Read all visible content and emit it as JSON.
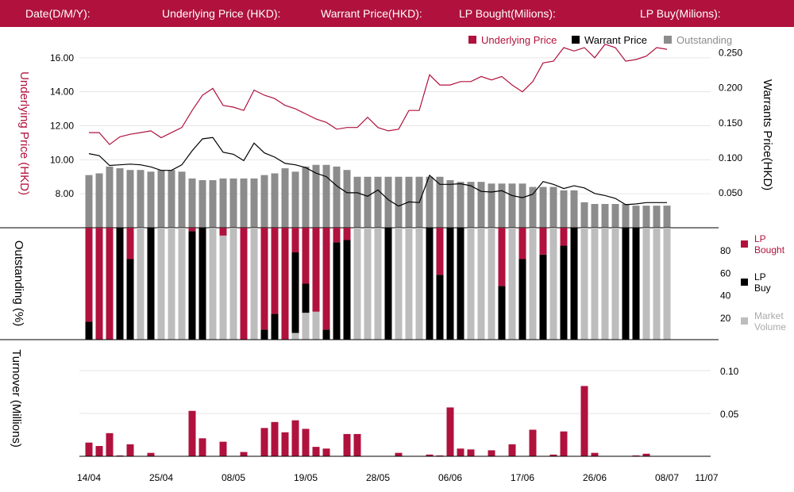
{
  "header": {
    "date_label": "Date(D/M/Y):",
    "underlying_label": "Underlying Price (HKD):",
    "warrant_label": "Warrant  Price(HKD):",
    "lp_bought_label": "LP Bought(Milions):",
    "lp_buy_label": "LP Buy(Milions):"
  },
  "colors": {
    "header_bg": "#b0123d",
    "crimson": "#b0123d",
    "black": "#000000",
    "outstanding": "#8c8c8c",
    "market": "#bdbdbd"
  },
  "chart_data": [
    {
      "type": "line",
      "legend": [
        "Underlying Price",
        "Warrant  Price",
        "Outstanding"
      ],
      "legend_position": "top-right",
      "ylabel_left": "Underlying Price (HKD)",
      "ylabel_right": "Warrants  Price(HKD)",
      "y_left_ticks": [
        "8.00",
        "10.00",
        "12.00",
        "14.00",
        "16.00"
      ],
      "y_right_ticks": [
        "0.050",
        "0.100",
        "0.150",
        "0.200",
        "0.250"
      ],
      "ylim_left": [
        6.0,
        16.6
      ],
      "ylim_right": [
        0.0,
        0.2575
      ],
      "underlying": [
        11.6,
        11.6,
        10.9,
        11.35,
        11.5,
        11.6,
        11.7,
        11.3,
        11.6,
        11.9,
        12.9,
        13.8,
        14.2,
        13.2,
        13.1,
        12.9,
        14.1,
        13.8,
        13.6,
        13.2,
        13.0,
        12.7,
        12.4,
        12.2,
        11.8,
        11.9,
        11.9,
        12.5,
        11.9,
        11.7,
        11.8,
        12.9,
        12.9,
        15.0,
        14.4,
        14.4,
        14.6,
        14.6,
        14.9,
        14.7,
        14.9,
        14.4,
        14.0,
        14.6,
        15.7,
        15.8,
        16.6,
        16.4,
        16.6,
        16.0,
        16.8,
        16.6,
        15.8,
        15.9,
        16.1,
        16.6,
        16.5
      ],
      "warrant": [
        0.106,
        0.103,
        0.089,
        0.09,
        0.091,
        0.09,
        0.087,
        0.082,
        0.082,
        0.09,
        0.11,
        0.127,
        0.129,
        0.108,
        0.105,
        0.096,
        0.121,
        0.107,
        0.101,
        0.092,
        0.09,
        0.086,
        0.078,
        0.073,
        0.06,
        0.05,
        0.05,
        0.045,
        0.054,
        0.04,
        0.031,
        0.037,
        0.036,
        0.075,
        0.062,
        0.062,
        0.063,
        0.06,
        0.052,
        0.051,
        0.053,
        0.046,
        0.043,
        0.048,
        0.066,
        0.062,
        0.056,
        0.06,
        0.057,
        0.049,
        0.046,
        0.042,
        0.033,
        0.034,
        0.036,
        0.036,
        0.036
      ],
      "outstanding": [
        9.1,
        9.2,
        9.6,
        9.5,
        9.4,
        9.4,
        9.3,
        9.4,
        9.4,
        9.3,
        8.9,
        8.8,
        8.8,
        8.9,
        8.9,
        8.9,
        8.9,
        9.1,
        9.2,
        9.5,
        9.3,
        9.6,
        9.7,
        9.7,
        9.6,
        9.4,
        9.0,
        9.0,
        9.0,
        9.0,
        9.0,
        9.0,
        9.0,
        9.0,
        9.0,
        8.8,
        8.7,
        8.7,
        8.7,
        8.6,
        8.6,
        8.6,
        8.6,
        8.4,
        8.4,
        8.4,
        8.2,
        8.2,
        7.5,
        7.4,
        7.4,
        7.4,
        7.4,
        7.3,
        7.3,
        7.3,
        7.3
      ]
    },
    {
      "type": "bar",
      "ylabel": "Outstanding (%)",
      "legend": [
        "LP Bought",
        "LP Buy",
        "Market Volume"
      ],
      "legend_position": "right",
      "y_ticks": [
        20,
        40,
        60,
        80
      ],
      "ylim": [
        0,
        100
      ],
      "stack_order": [
        "market",
        "lp_buy",
        "lp_bought"
      ],
      "lp_bought": [
        84,
        100,
        100,
        0,
        28,
        0,
        0,
        0,
        0,
        0,
        3,
        0,
        0,
        7,
        0,
        100,
        0,
        91,
        77,
        100,
        22,
        50,
        75,
        91,
        13,
        11,
        0,
        0,
        0,
        0,
        0,
        0,
        0,
        0,
        42,
        0,
        0,
        0,
        0,
        0,
        52,
        0,
        28,
        0,
        24,
        0,
        16,
        0,
        0,
        0,
        0,
        0,
        0,
        0,
        0,
        0,
        0
      ],
      "lp_buy": [
        16,
        0,
        0,
        100,
        72,
        0,
        100,
        0,
        0,
        0,
        97,
        100,
        0,
        0,
        0,
        0,
        0,
        9,
        23,
        0,
        72,
        26,
        0,
        9,
        87,
        89,
        0,
        0,
        0,
        100,
        0,
        0,
        0,
        100,
        58,
        100,
        100,
        0,
        0,
        0,
        48,
        0,
        72,
        0,
        76,
        0,
        84,
        100,
        0,
        0,
        0,
        0,
        100,
        100,
        0,
        0,
        0
      ],
      "market": [
        0,
        0,
        0,
        0,
        0,
        100,
        0,
        100,
        100,
        100,
        0,
        0,
        100,
        93,
        100,
        0,
        100,
        0,
        0,
        0,
        6,
        24,
        25,
        0,
        0,
        0,
        100,
        100,
        100,
        0,
        100,
        100,
        100,
        0,
        0,
        0,
        0,
        100,
        100,
        100,
        0,
        100,
        0,
        100,
        0,
        100,
        0,
        0,
        100,
        100,
        100,
        100,
        0,
        0,
        100,
        100,
        100
      ]
    },
    {
      "type": "bar",
      "ylabel": "Turnover (Millions)",
      "y_ticks": [
        "0.05",
        "0.10"
      ],
      "ylim": [
        0,
        0.125
      ],
      "values": [
        0.016,
        0.012,
        0.027,
        0.001,
        0.014,
        0.0,
        0.004,
        0.0,
        0.0,
        0.0,
        0.053,
        0.021,
        0.0,
        0.017,
        0.0,
        0.005,
        0.0,
        0.033,
        0.04,
        0.028,
        0.042,
        0.032,
        0.011,
        0.009,
        0.0,
        0.026,
        0.026,
        0.0,
        0.0,
        0.0,
        0.004,
        0.0,
        0.0,
        0.002,
        0.001,
        0.057,
        0.009,
        0.008,
        0.0,
        0.007,
        0.0,
        0.014,
        0.0,
        0.031,
        0.0,
        0.002,
        0.029,
        0.0,
        0.082,
        0.004,
        0.0,
        0.0,
        0.0,
        0.001,
        0.003,
        0.0,
        0.0
      ]
    }
  ],
  "x_tick_labels": [
    {
      "index": 0,
      "label": "14/04"
    },
    {
      "index": 7,
      "label": "25/04"
    },
    {
      "index": 14,
      "label": "08/05"
    },
    {
      "index": 21,
      "label": "19/05"
    },
    {
      "index": 28,
      "label": "28/05"
    },
    {
      "index": 35,
      "label": "06/06"
    },
    {
      "index": 42,
      "label": "17/06"
    },
    {
      "index": 49,
      "label": "26/06"
    },
    {
      "index": 56,
      "label": "08/07"
    },
    {
      "index": 57,
      "label": "11/07"
    }
  ]
}
